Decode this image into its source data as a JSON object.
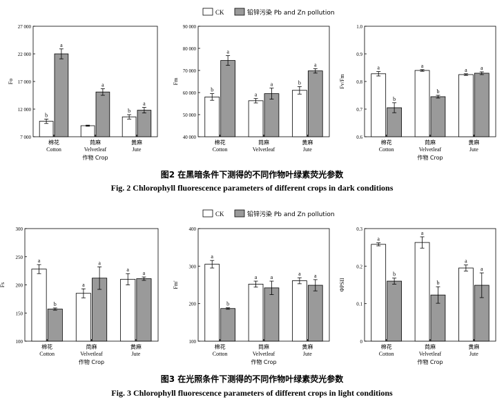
{
  "legend": {
    "ck": "CK",
    "pollution": "铅锌污染 Pb and Zn pollution"
  },
  "colors": {
    "ck_fill": "#ffffff",
    "pollution_fill": "#9a9a9a",
    "stroke": "#000000"
  },
  "figures": [
    {
      "caption_cn": "图2   在黑暗条件下测得的不同作物叶绿素荧光参数",
      "caption_en": "Fig. 2    Chlorophyll fluorescence parameters of different crops in dark conditions"
    },
    {
      "caption_cn": "图3   在光照条件下测得的不同作物叶绿素荧光参数",
      "caption_en": "Fig. 3    Chlorophyll fluorescence parameters of different crops in light conditions"
    }
  ],
  "chart_data": [
    {
      "type": "bar",
      "ylabel": "Fo",
      "xlabel": "作物  Crop",
      "categories": [
        "棉花\nCotton",
        "苘麻\nVelvetleaf",
        "黄麻\nJute"
      ],
      "ylim": [
        7000,
        27000
      ],
      "yticks": [
        7000,
        12000,
        17000,
        22000,
        27000
      ],
      "yticklabels": [
        "7 000",
        "12 000",
        "17 000",
        "22 000",
        "27 000"
      ],
      "series": [
        {
          "name": "CK",
          "values": [
            9800,
            9000,
            10600
          ],
          "errors": [
            400,
            100,
            400
          ],
          "labels": [
            "b",
            "",
            "b"
          ]
        },
        {
          "name": "铅锌污染 Pb and Zn pollution",
          "values": [
            22000,
            15100,
            11800
          ],
          "errors": [
            900,
            600,
            500
          ],
          "labels": [
            "a",
            "a",
            "a"
          ]
        }
      ]
    },
    {
      "type": "bar",
      "ylabel": "Fm",
      "xlabel": "",
      "categories": [
        "棉花\nCotton",
        "苘麻\nVelvetleaf",
        "黄麻\nJute"
      ],
      "ylim": [
        40000,
        90000
      ],
      "yticks": [
        40000,
        50000,
        60000,
        70000,
        80000,
        90000
      ],
      "yticklabels": [
        "40 000",
        "50 000",
        "60 000",
        "70 000",
        "80 000",
        "90 000"
      ],
      "series": [
        {
          "name": "CK",
          "values": [
            58000,
            56300,
            61000
          ],
          "errors": [
            1500,
            1000,
            1700
          ],
          "labels": [
            "b",
            "a",
            "b"
          ]
        },
        {
          "name": "铅锌污染 Pb and Zn pollution",
          "values": [
            74500,
            59500,
            69800
          ],
          "errors": [
            2200,
            2500,
            1000
          ],
          "labels": [
            "a",
            "a",
            "a"
          ]
        }
      ]
    },
    {
      "type": "bar",
      "ylabel": "Fv/Fm",
      "xlabel": "作物  Crop",
      "categories": [
        "棉花\nCotton",
        "苘麻\nVelvetleaf",
        "黄麻\nJute"
      ],
      "ylim": [
        0.6,
        1.0
      ],
      "yticks": [
        0.6,
        0.7,
        0.8,
        0.9,
        1.0
      ],
      "yticklabels": [
        "0.6",
        "0.7",
        "0.8",
        "0.9",
        "1.0"
      ],
      "series": [
        {
          "name": "CK",
          "values": [
            0.828,
            0.84,
            0.825
          ],
          "errors": [
            0.008,
            0.003,
            0.003
          ],
          "labels": [
            "a",
            "a",
            "a"
          ]
        },
        {
          "name": "铅锌污染 Pb and Zn pollution",
          "values": [
            0.705,
            0.745,
            0.83
          ],
          "errors": [
            0.018,
            0.005,
            0.005
          ],
          "labels": [
            "b",
            "b",
            "a"
          ]
        }
      ]
    },
    {
      "type": "bar",
      "ylabel": "Fs",
      "xlabel": "作物  Crop",
      "categories": [
        "棉花\nCotton",
        "苘麻\nVelvetleaf",
        "黄麻\nJute"
      ],
      "ylim": [
        100,
        300
      ],
      "yticks": [
        100,
        150,
        200,
        250,
        300
      ],
      "yticklabels": [
        "100",
        "150",
        "200",
        "250",
        "300"
      ],
      "series": [
        {
          "name": "CK",
          "values": [
            228,
            185,
            210
          ],
          "errors": [
            8,
            8,
            10
          ],
          "labels": [
            "a",
            "a",
            "a"
          ]
        },
        {
          "name": "铅锌污染 Pb and Zn pollution",
          "values": [
            157,
            212,
            211
          ],
          "errors": [
            2,
            20,
            3
          ],
          "labels": [
            "b",
            "a",
            "a"
          ]
        }
      ]
    },
    {
      "type": "bar",
      "ylabel": "Fm'",
      "xlabel": "作物  Crop",
      "categories": [
        "棉花\nCotton",
        "苘麻\nVelvetleaf",
        "黄麻\nJute"
      ],
      "ylim": [
        100,
        400
      ],
      "yticks": [
        100,
        200,
        300,
        400
      ],
      "yticklabels": [
        "100",
        "200",
        "300",
        "400"
      ],
      "series": [
        {
          "name": "CK",
          "values": [
            305,
            252,
            261
          ],
          "errors": [
            10,
            8,
            8
          ],
          "labels": [
            "a",
            "a",
            "a"
          ]
        },
        {
          "name": "铅锌污染 Pb and Zn pollution",
          "values": [
            187,
            242,
            249
          ],
          "errors": [
            2,
            18,
            15
          ],
          "labels": [
            "b",
            "a",
            "a"
          ]
        }
      ]
    },
    {
      "type": "bar",
      "ylabel": "ΦPSII",
      "xlabel": "作物  Crop",
      "categories": [
        "棉花\nCotton",
        "苘麻\nVelvetleaf",
        "黄麻\nJute"
      ],
      "ylim": [
        0,
        0.3
      ],
      "yticks": [
        0,
        0.1,
        0.2,
        0.3
      ],
      "yticklabels": [
        "0",
        "0.1",
        "0.2",
        "0.3"
      ],
      "series": [
        {
          "name": "CK",
          "values": [
            0.258,
            0.263,
            0.195
          ],
          "errors": [
            0.004,
            0.015,
            0.008
          ],
          "labels": [
            "a",
            "a",
            "a"
          ]
        },
        {
          "name": "铅锌污染 Pb and Zn pollution",
          "values": [
            0.16,
            0.123,
            0.149
          ],
          "errors": [
            0.008,
            0.022,
            0.033
          ],
          "labels": [
            "b",
            "b",
            "a"
          ]
        }
      ]
    }
  ]
}
